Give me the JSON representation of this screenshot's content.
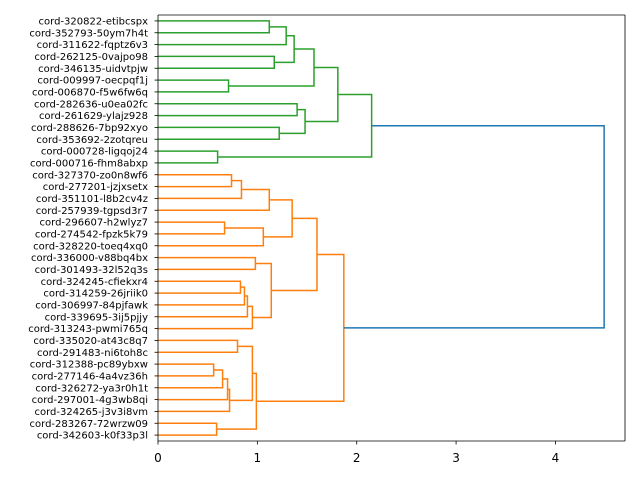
{
  "chart_data": {
    "type": "dendrogram",
    "orientation": "left",
    "title": "",
    "xlabel": "",
    "ylabel": "",
    "xlim": [
      0,
      4.7
    ],
    "xticks": [
      0,
      1,
      2,
      3,
      4
    ],
    "colors": {
      "above_threshold": "#1f77b4",
      "cluster_green": "#2ca02c",
      "cluster_orange": "#ff7f0e",
      "axis": "#000000"
    },
    "labels": [
      "cord-320822-etibcspx",
      "cord-352793-50ym7h4t",
      "cord-311622-fqptz6v3",
      "cord-262125-0vajpo98",
      "cord-346135-uidvtpjw",
      "cord-009997-oecpqf1j",
      "cord-006870-f5w6fw6q",
      "cord-282636-u0ea02fc",
      "cord-261629-ylajz928",
      "cord-288626-7bp92xyo",
      "cord-353692-2zotqreu",
      "cord-000728-ligqoj24",
      "cord-000716-fhm8abxp",
      "cord-327370-zo0n8wf6",
      "cord-277201-jzjxsetx",
      "cord-351101-l8b2cv4z",
      "cord-257939-tgpsd3r7",
      "cord-296607-h2wlyz7",
      "cord-274542-fpzk5k79",
      "cord-328220-toeq4xq0",
      "cord-336000-v88bq4bx",
      "cord-301493-32l52q3s",
      "cord-324245-cfiekxr4",
      "cord-314259-26jriik0",
      "cord-306997-84pjfawk",
      "cord-339695-3ij5pjjy",
      "cord-313243-pwmi765q",
      "cord-335020-at43c8q7",
      "cord-291483-ni6toh8c",
      "cord-312388-pc89ybxw",
      "cord-277146-4a4vz36h",
      "cord-326272-ya3r0h1t",
      "cord-297001-4g3wb8qi",
      "cord-324265-j3v3i8vm",
      "cord-283267-72wrzw09",
      "cord-342603-k0f33p3l"
    ],
    "merges": [
      {
        "id": "m1",
        "a": "L0",
        "b": "L1",
        "height": 1.12,
        "color": "cluster_green"
      },
      {
        "id": "m2",
        "a": "m1",
        "b": "L2",
        "height": 1.29,
        "color": "cluster_green"
      },
      {
        "id": "m3",
        "a": "L3",
        "b": "L4",
        "height": 1.17,
        "color": "cluster_green"
      },
      {
        "id": "m4",
        "a": "m2",
        "b": "m3",
        "height": 1.37,
        "color": "cluster_green"
      },
      {
        "id": "m5",
        "a": "L5",
        "b": "L6",
        "height": 0.71,
        "color": "cluster_green"
      },
      {
        "id": "m6",
        "a": "m4",
        "b": "m5",
        "height": 1.57,
        "color": "cluster_green"
      },
      {
        "id": "m7",
        "a": "L7",
        "b": "L8",
        "height": 1.4,
        "color": "cluster_green"
      },
      {
        "id": "m8",
        "a": "L9",
        "b": "L10",
        "height": 1.22,
        "color": "cluster_green"
      },
      {
        "id": "m9",
        "a": "m7",
        "b": "m8",
        "height": 1.48,
        "color": "cluster_green"
      },
      {
        "id": "m10",
        "a": "m6",
        "b": "m9",
        "height": 1.81,
        "color": "cluster_green"
      },
      {
        "id": "m11",
        "a": "L11",
        "b": "L12",
        "height": 0.6,
        "color": "cluster_green"
      },
      {
        "id": "m12",
        "a": "m10",
        "b": "m11",
        "height": 2.15,
        "color": "cluster_green"
      },
      {
        "id": "m13",
        "a": "L13",
        "b": "L14",
        "height": 0.74,
        "color": "cluster_orange"
      },
      {
        "id": "m14",
        "a": "m13",
        "b": "L15",
        "height": 0.84,
        "color": "cluster_orange"
      },
      {
        "id": "m15",
        "a": "m14",
        "b": "L16",
        "height": 1.12,
        "color": "cluster_orange"
      },
      {
        "id": "m16",
        "a": "L17",
        "b": "L18",
        "height": 0.67,
        "color": "cluster_orange"
      },
      {
        "id": "m17",
        "a": "m16",
        "b": "L19",
        "height": 1.06,
        "color": "cluster_orange"
      },
      {
        "id": "m18",
        "a": "m15",
        "b": "m17",
        "height": 1.35,
        "color": "cluster_orange"
      },
      {
        "id": "m19",
        "a": "L20",
        "b": "L21",
        "height": 0.98,
        "color": "cluster_orange"
      },
      {
        "id": "m20",
        "a": "L22",
        "b": "L23",
        "height": 0.83,
        "color": "cluster_orange"
      },
      {
        "id": "m21",
        "a": "m20",
        "b": "L24",
        "height": 0.87,
        "color": "cluster_orange"
      },
      {
        "id": "m22",
        "a": "m21",
        "b": "L25",
        "height": 0.9,
        "color": "cluster_orange"
      },
      {
        "id": "m23",
        "a": "m22",
        "b": "L26",
        "height": 0.95,
        "color": "cluster_orange"
      },
      {
        "id": "m24",
        "a": "m19",
        "b": "m23",
        "height": 1.14,
        "color": "cluster_orange"
      },
      {
        "id": "m25",
        "a": "m18",
        "b": "m24",
        "height": 1.6,
        "color": "cluster_orange"
      },
      {
        "id": "m26",
        "a": "L27",
        "b": "L28",
        "height": 0.8,
        "color": "cluster_orange"
      },
      {
        "id": "m27",
        "a": "L29",
        "b": "L30",
        "height": 0.56,
        "color": "cluster_orange"
      },
      {
        "id": "m28",
        "a": "m27",
        "b": "L31",
        "height": 0.65,
        "color": "cluster_orange"
      },
      {
        "id": "m29",
        "a": "m28",
        "b": "L32",
        "height": 0.7,
        "color": "cluster_orange"
      },
      {
        "id": "m30",
        "a": "m29",
        "b": "L33",
        "height": 0.72,
        "color": "cluster_orange"
      },
      {
        "id": "m31",
        "a": "m26",
        "b": "m30",
        "height": 0.95,
        "color": "cluster_orange"
      },
      {
        "id": "m32",
        "a": "L34",
        "b": "L35",
        "height": 0.59,
        "color": "cluster_orange"
      },
      {
        "id": "m33",
        "a": "m31",
        "b": "m32",
        "height": 0.99,
        "color": "cluster_orange"
      },
      {
        "id": "m34",
        "a": "m25",
        "b": "m33",
        "height": 1.87,
        "color": "cluster_orange"
      },
      {
        "id": "m35",
        "a": "m12",
        "b": "m34",
        "height": 4.49,
        "color": "above_threshold"
      }
    ]
  }
}
